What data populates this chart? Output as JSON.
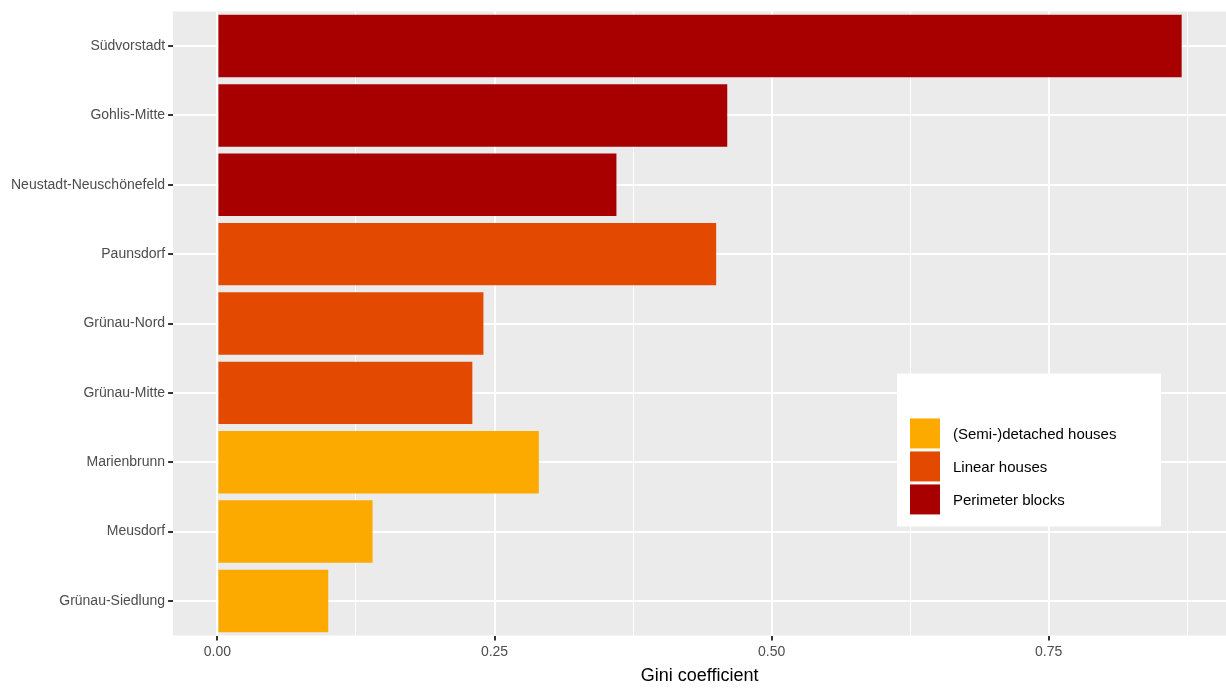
{
  "chart_data": {
    "type": "bar",
    "orientation": "horizontal",
    "stacked": true,
    "xlabel": "Gini coefficient",
    "categories": [
      "Südvorstadt",
      "Gohlis-Mitte",
      "Neustadt-Neuschönefeld",
      "Paunsdorf",
      "Grünau-Nord",
      "Grünau-Mitte",
      "Marienbrunn",
      "Meusdorf",
      "Grünau-Siedlung"
    ],
    "series": [
      {
        "name": "(Semi-)detached houses",
        "color": "#fdaa00",
        "values": [
          null,
          null,
          null,
          null,
          null,
          null,
          0.29,
          0.14,
          0.1
        ]
      },
      {
        "name": "Linear houses",
        "color": "#e34a00",
        "values": [
          null,
          null,
          null,
          0.45,
          0.24,
          0.23,
          null,
          null,
          null
        ]
      },
      {
        "name": "Perimeter blocks",
        "color": "#a80000",
        "values": [
          0.87,
          0.46,
          0.36,
          null,
          null,
          null,
          null,
          null,
          null
        ]
      }
    ],
    "xlim": [
      -0.04,
      0.91
    ],
    "xticks": [
      {
        "value": 0,
        "label": "0.00"
      },
      {
        "value": 0.125,
        "label": null
      },
      {
        "value": 0.25,
        "label": "0.25"
      },
      {
        "value": 0.375,
        "label": null
      },
      {
        "value": 0.5,
        "label": "0.50"
      },
      {
        "value": 0.625,
        "label": null
      },
      {
        "value": 0.75,
        "label": "0.75"
      },
      {
        "value": 0.875,
        "label": null
      }
    ],
    "grid": true,
    "legend": "right"
  }
}
